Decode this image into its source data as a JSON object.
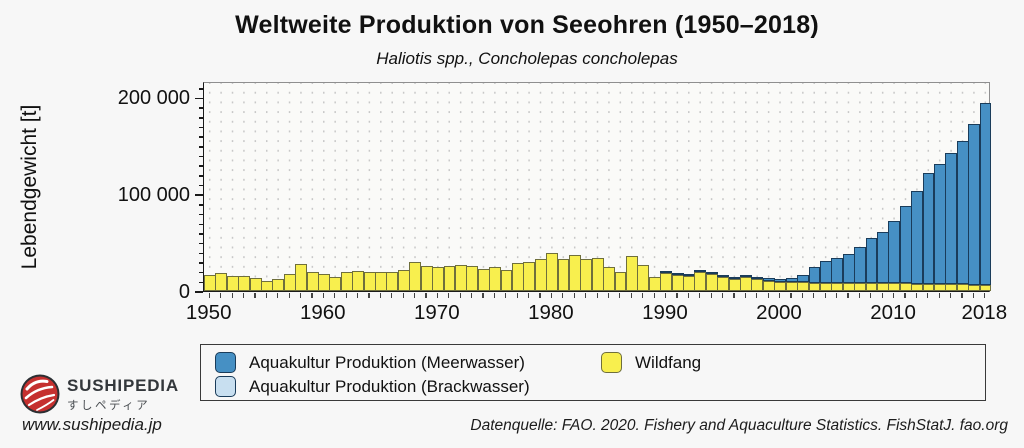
{
  "header": {
    "title": "Weltweite Produktion von Seeohren (1950–2018)",
    "subtitle": "Haliotis spp., Concholepas concholepas"
  },
  "chart_data": {
    "type": "bar",
    "stacked": true,
    "title": "Weltweite Produktion von Seeohren (1950–2018)",
    "subtitle": "Haliotis spp., Concholepas concholepas",
    "xlabel": "",
    "ylabel": "Lebendgewicht [t]",
    "ylim": [
      0,
      217000
    ],
    "grid": "dotted",
    "legend_position": "bottom",
    "x": [
      1950,
      1951,
      1952,
      1953,
      1954,
      1955,
      1956,
      1957,
      1958,
      1959,
      1960,
      1961,
      1962,
      1963,
      1964,
      1965,
      1966,
      1967,
      1968,
      1969,
      1970,
      1971,
      1972,
      1973,
      1974,
      1975,
      1976,
      1977,
      1978,
      1979,
      1980,
      1981,
      1982,
      1983,
      1984,
      1985,
      1986,
      1987,
      1988,
      1989,
      1990,
      1991,
      1992,
      1993,
      1994,
      1995,
      1996,
      1997,
      1998,
      1999,
      2000,
      2001,
      2002,
      2003,
      2004,
      2005,
      2006,
      2007,
      2008,
      2009,
      2010,
      2011,
      2012,
      2013,
      2014,
      2015,
      2016,
      2017,
      2018
    ],
    "series": [
      {
        "name": "Aquakultur Produktion (Meerwasser)",
        "color": "#4690c4",
        "border": "#1a3c5a",
        "values": [
          0,
          0,
          0,
          0,
          0,
          0,
          0,
          0,
          0,
          0,
          0,
          0,
          0,
          0,
          0,
          0,
          0,
          0,
          0,
          0,
          0,
          0,
          0,
          0,
          0,
          0,
          0,
          0,
          0,
          0,
          0,
          0,
          0,
          0,
          0,
          0,
          0,
          0,
          0,
          0,
          500,
          700,
          1000,
          1200,
          1500,
          2000,
          2200,
          2500,
          2700,
          3000,
          3000,
          3500,
          8000,
          16500,
          22500,
          25500,
          29500,
          37500,
          46500,
          53000,
          64000,
          80000,
          95500,
          114500,
          123500,
          136000,
          148000,
          166500,
          187500
        ]
      },
      {
        "name": "Aquakultur Produktion (Brackwasser)",
        "color": "#c8dff0",
        "border": "#1a3c5a",
        "values": [
          0,
          0,
          0,
          0,
          0,
          0,
          0,
          0,
          0,
          0,
          0,
          0,
          0,
          0,
          0,
          0,
          0,
          0,
          0,
          0,
          0,
          0,
          0,
          0,
          0,
          0,
          0,
          0,
          0,
          0,
          0,
          0,
          0,
          0,
          0,
          0,
          0,
          0,
          0,
          0,
          0,
          0,
          0,
          0,
          0,
          0,
          0,
          0,
          0,
          0,
          0,
          0,
          0,
          0,
          0,
          0,
          0,
          0,
          0,
          0,
          0,
          0,
          0,
          0,
          0,
          0,
          0,
          0,
          0
        ]
      },
      {
        "name": "Wildfang",
        "color": "#f8ef4e",
        "border": "#6f6f3c",
        "values": [
          16600,
          18400,
          16000,
          15300,
          13200,
          10800,
          12500,
          17700,
          28100,
          19400,
          17700,
          14900,
          19400,
          20500,
          19800,
          20100,
          19400,
          21900,
          29500,
          25500,
          25000,
          26000,
          27000,
          25700,
          22900,
          24600,
          22200,
          28800,
          29800,
          32600,
          39600,
          33300,
          36800,
          33300,
          34400,
          25300,
          19400,
          35700,
          26400,
          14200,
          18900,
          17000,
          15600,
          19300,
          17900,
          14000,
          12700,
          14100,
          12200,
          10500,
          9700,
          9500,
          9000,
          8500,
          8500,
          8500,
          8500,
          8500,
          8500,
          8000,
          8000,
          8000,
          7500,
          7500,
          7500,
          7000,
          7000,
          6500,
          6500
        ]
      }
    ],
    "stack_bottom_to_top": [
      2,
      0,
      1
    ],
    "yticks_major": [
      {
        "v": 0,
        "label": "0"
      },
      {
        "v": 100000,
        "label": "100 000"
      },
      {
        "v": 200000,
        "label": "200 000"
      }
    ],
    "ytick_minor_step": 10000,
    "xticks_labeled": [
      {
        "v": 1950,
        "label": "1950"
      },
      {
        "v": 1960,
        "label": "1960"
      },
      {
        "v": 1970,
        "label": "1970"
      },
      {
        "v": 1980,
        "label": "1980"
      },
      {
        "v": 1990,
        "label": "1990"
      },
      {
        "v": 2000,
        "label": "2000"
      },
      {
        "v": 2010,
        "label": "2010"
      },
      {
        "v": 2018,
        "label": "2018"
      }
    ]
  },
  "footer": {
    "brand_name": "Sushipedia",
    "brand_jp": "すしペディア",
    "brand_url": "www.sushipedia.jp",
    "source": "Datenquelle: FAO. 2020. Fishery and Aquaculture Statistics. FishStatJ. fao.org"
  }
}
